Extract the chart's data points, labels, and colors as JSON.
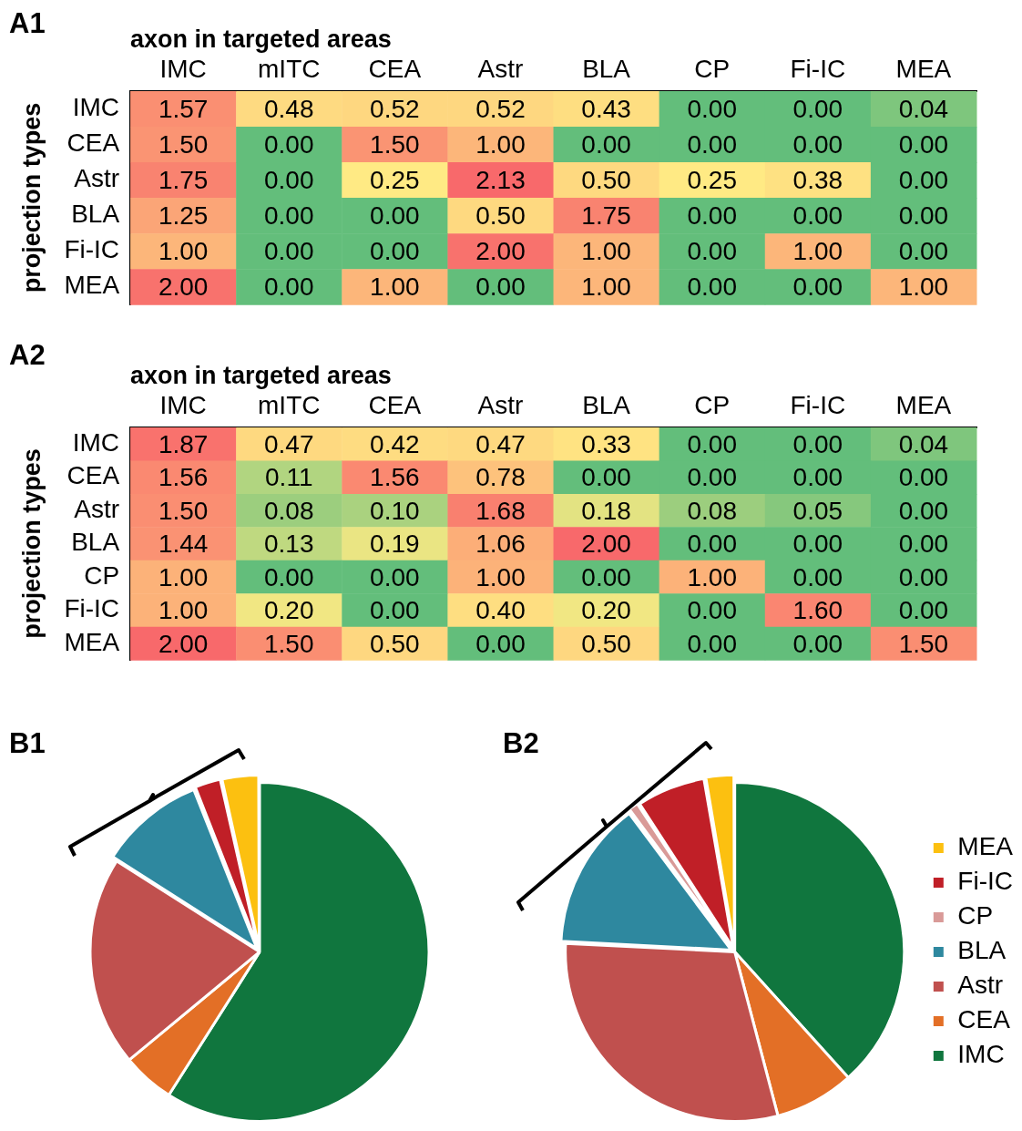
{
  "chart_data": [
    {
      "type": "heatmap",
      "xlabel": "axon in targeted areas",
      "ylabel": "projection types",
      "annotations": [
        "A1"
      ],
      "data_labels": true,
      "categories": [
        "IMC",
        "mITC",
        "CEA",
        "Astr",
        "BLA",
        "CP",
        "Fi-IC",
        "MEA"
      ],
      "y_categories": [
        "IMC",
        "CEA",
        "Astr",
        "BLA",
        "Fi-IC",
        "MEA"
      ],
      "cells": [
        [
          1.57,
          0.48,
          0.52,
          0.52,
          0.43,
          0.0,
          0.0,
          0.04
        ],
        [
          1.5,
          0.0,
          1.5,
          1.0,
          0.0,
          0.0,
          0.0,
          0.0
        ],
        [
          1.75,
          0.0,
          0.25,
          2.13,
          0.5,
          0.25,
          0.38,
          0.0
        ],
        [
          1.25,
          0.0,
          0.0,
          0.5,
          1.75,
          0.0,
          0.0,
          0.0
        ],
        [
          1.0,
          0.0,
          0.0,
          2.0,
          1.0,
          0.0,
          1.0,
          0.0
        ],
        [
          2.0,
          0.0,
          1.0,
          0.0,
          1.0,
          0.0,
          0.0,
          1.0
        ]
      ],
      "cell_labels": [
        [
          "1.57",
          "0.48",
          "0.52",
          "0.52",
          "0.43",
          "0.00",
          "0.00",
          "0.04"
        ],
        [
          "1.50",
          "0.00",
          "1.50",
          "1.00",
          "0.00",
          "0.00",
          "0.00",
          "0.00"
        ],
        [
          "1.75",
          "0.00",
          "0.25",
          "2.13",
          "0.50",
          "0.25",
          "0.38",
          "0.00"
        ],
        [
          "1.25",
          "0.00",
          "0.00",
          "0.50",
          "1.75",
          "0.00",
          "0.00",
          "0.00"
        ],
        [
          "1.00",
          "0.00",
          "0.00",
          "2.00",
          "1.00",
          "0.00",
          "1.00",
          "0.00"
        ],
        [
          "2.00",
          "0.00",
          "1.00",
          "0.00",
          "1.00",
          "0.00",
          "0.00",
          "1.00"
        ]
      ]
    },
    {
      "type": "heatmap",
      "xlabel": "axon in targeted areas",
      "ylabel": "projection types",
      "annotations": [
        "A2"
      ],
      "data_labels": true,
      "categories": [
        "IMC",
        "mITC",
        "CEA",
        "Astr",
        "BLA",
        "CP",
        "Fi-IC",
        "MEA"
      ],
      "y_categories": [
        "IMC",
        "CEA",
        "Astr",
        "BLA",
        "CP",
        "Fi-IC",
        "MEA"
      ],
      "cells": [
        [
          1.87,
          0.47,
          0.42,
          0.47,
          0.33,
          0.0,
          0.0,
          0.04
        ],
        [
          1.56,
          0.11,
          1.56,
          0.78,
          0.0,
          0.0,
          0.0,
          0.0
        ],
        [
          1.5,
          0.08,
          0.1,
          1.68,
          0.18,
          0.08,
          0.05,
          0.0
        ],
        [
          1.44,
          0.13,
          0.19,
          1.06,
          2.0,
          0.0,
          0.0,
          0.0
        ],
        [
          1.0,
          0.0,
          0.0,
          1.0,
          0.0,
          1.0,
          0.0,
          0.0
        ],
        [
          1.0,
          0.2,
          0.0,
          0.4,
          0.2,
          0.0,
          1.6,
          0.0
        ],
        [
          2.0,
          1.5,
          0.5,
          0.0,
          0.5,
          0.0,
          0.0,
          1.5
        ]
      ],
      "cell_labels": [
        [
          "1.87",
          "0.47",
          "0.42",
          "0.47",
          "0.33",
          "0.00",
          "0.00",
          "0.04"
        ],
        [
          "1.56",
          "0.11",
          "1.56",
          "0.78",
          "0.00",
          "0.00",
          "0.00",
          "0.00"
        ],
        [
          "1.50",
          "0.08",
          "0.10",
          "1.68",
          "0.18",
          "0.08",
          "0.05",
          "0.00"
        ],
        [
          "1.44",
          "0.13",
          "0.19",
          "1.06",
          "2.00",
          "0.00",
          "0.00",
          "0.00"
        ],
        [
          "1.00",
          "0.00",
          "0.00",
          "1.00",
          "0.00",
          "1.00",
          "0.00",
          "0.00"
        ],
        [
          "1.00",
          "0.20",
          "0.00",
          "0.40",
          "0.20",
          "0.00",
          "1.60",
          "0.00"
        ],
        [
          "2.00",
          "1.50",
          "0.50",
          "0.00",
          "0.50",
          "0.00",
          "0.00",
          "1.50"
        ]
      ]
    },
    {
      "type": "pie",
      "annotations": [
        "B1"
      ],
      "legend": false,
      "categories": [
        null,
        null,
        null,
        null,
        null,
        null
      ],
      "values": [
        59,
        5,
        20,
        10,
        2.5,
        3.5
      ],
      "colors": [
        "#10763e",
        "#e36f26",
        "#c0504e",
        "#2e889f",
        "#c01f27",
        "#fcc010"
      ]
    },
    {
      "type": "pie",
      "annotations": [
        "B2"
      ],
      "legend": "right",
      "categories": [
        "IMC",
        "CEA",
        "Astr",
        "BLA",
        "CP",
        "Fi-IC",
        "MEA"
      ],
      "values": [
        38.3,
        7.6,
        29.9,
        14,
        1,
        6.5,
        2.7
      ],
      "colors": [
        "#10763e",
        "#e36f26",
        "#c0504e",
        "#2e889f",
        "#d99a98",
        "#c01f27",
        "#fcc010"
      ]
    }
  ]
}
